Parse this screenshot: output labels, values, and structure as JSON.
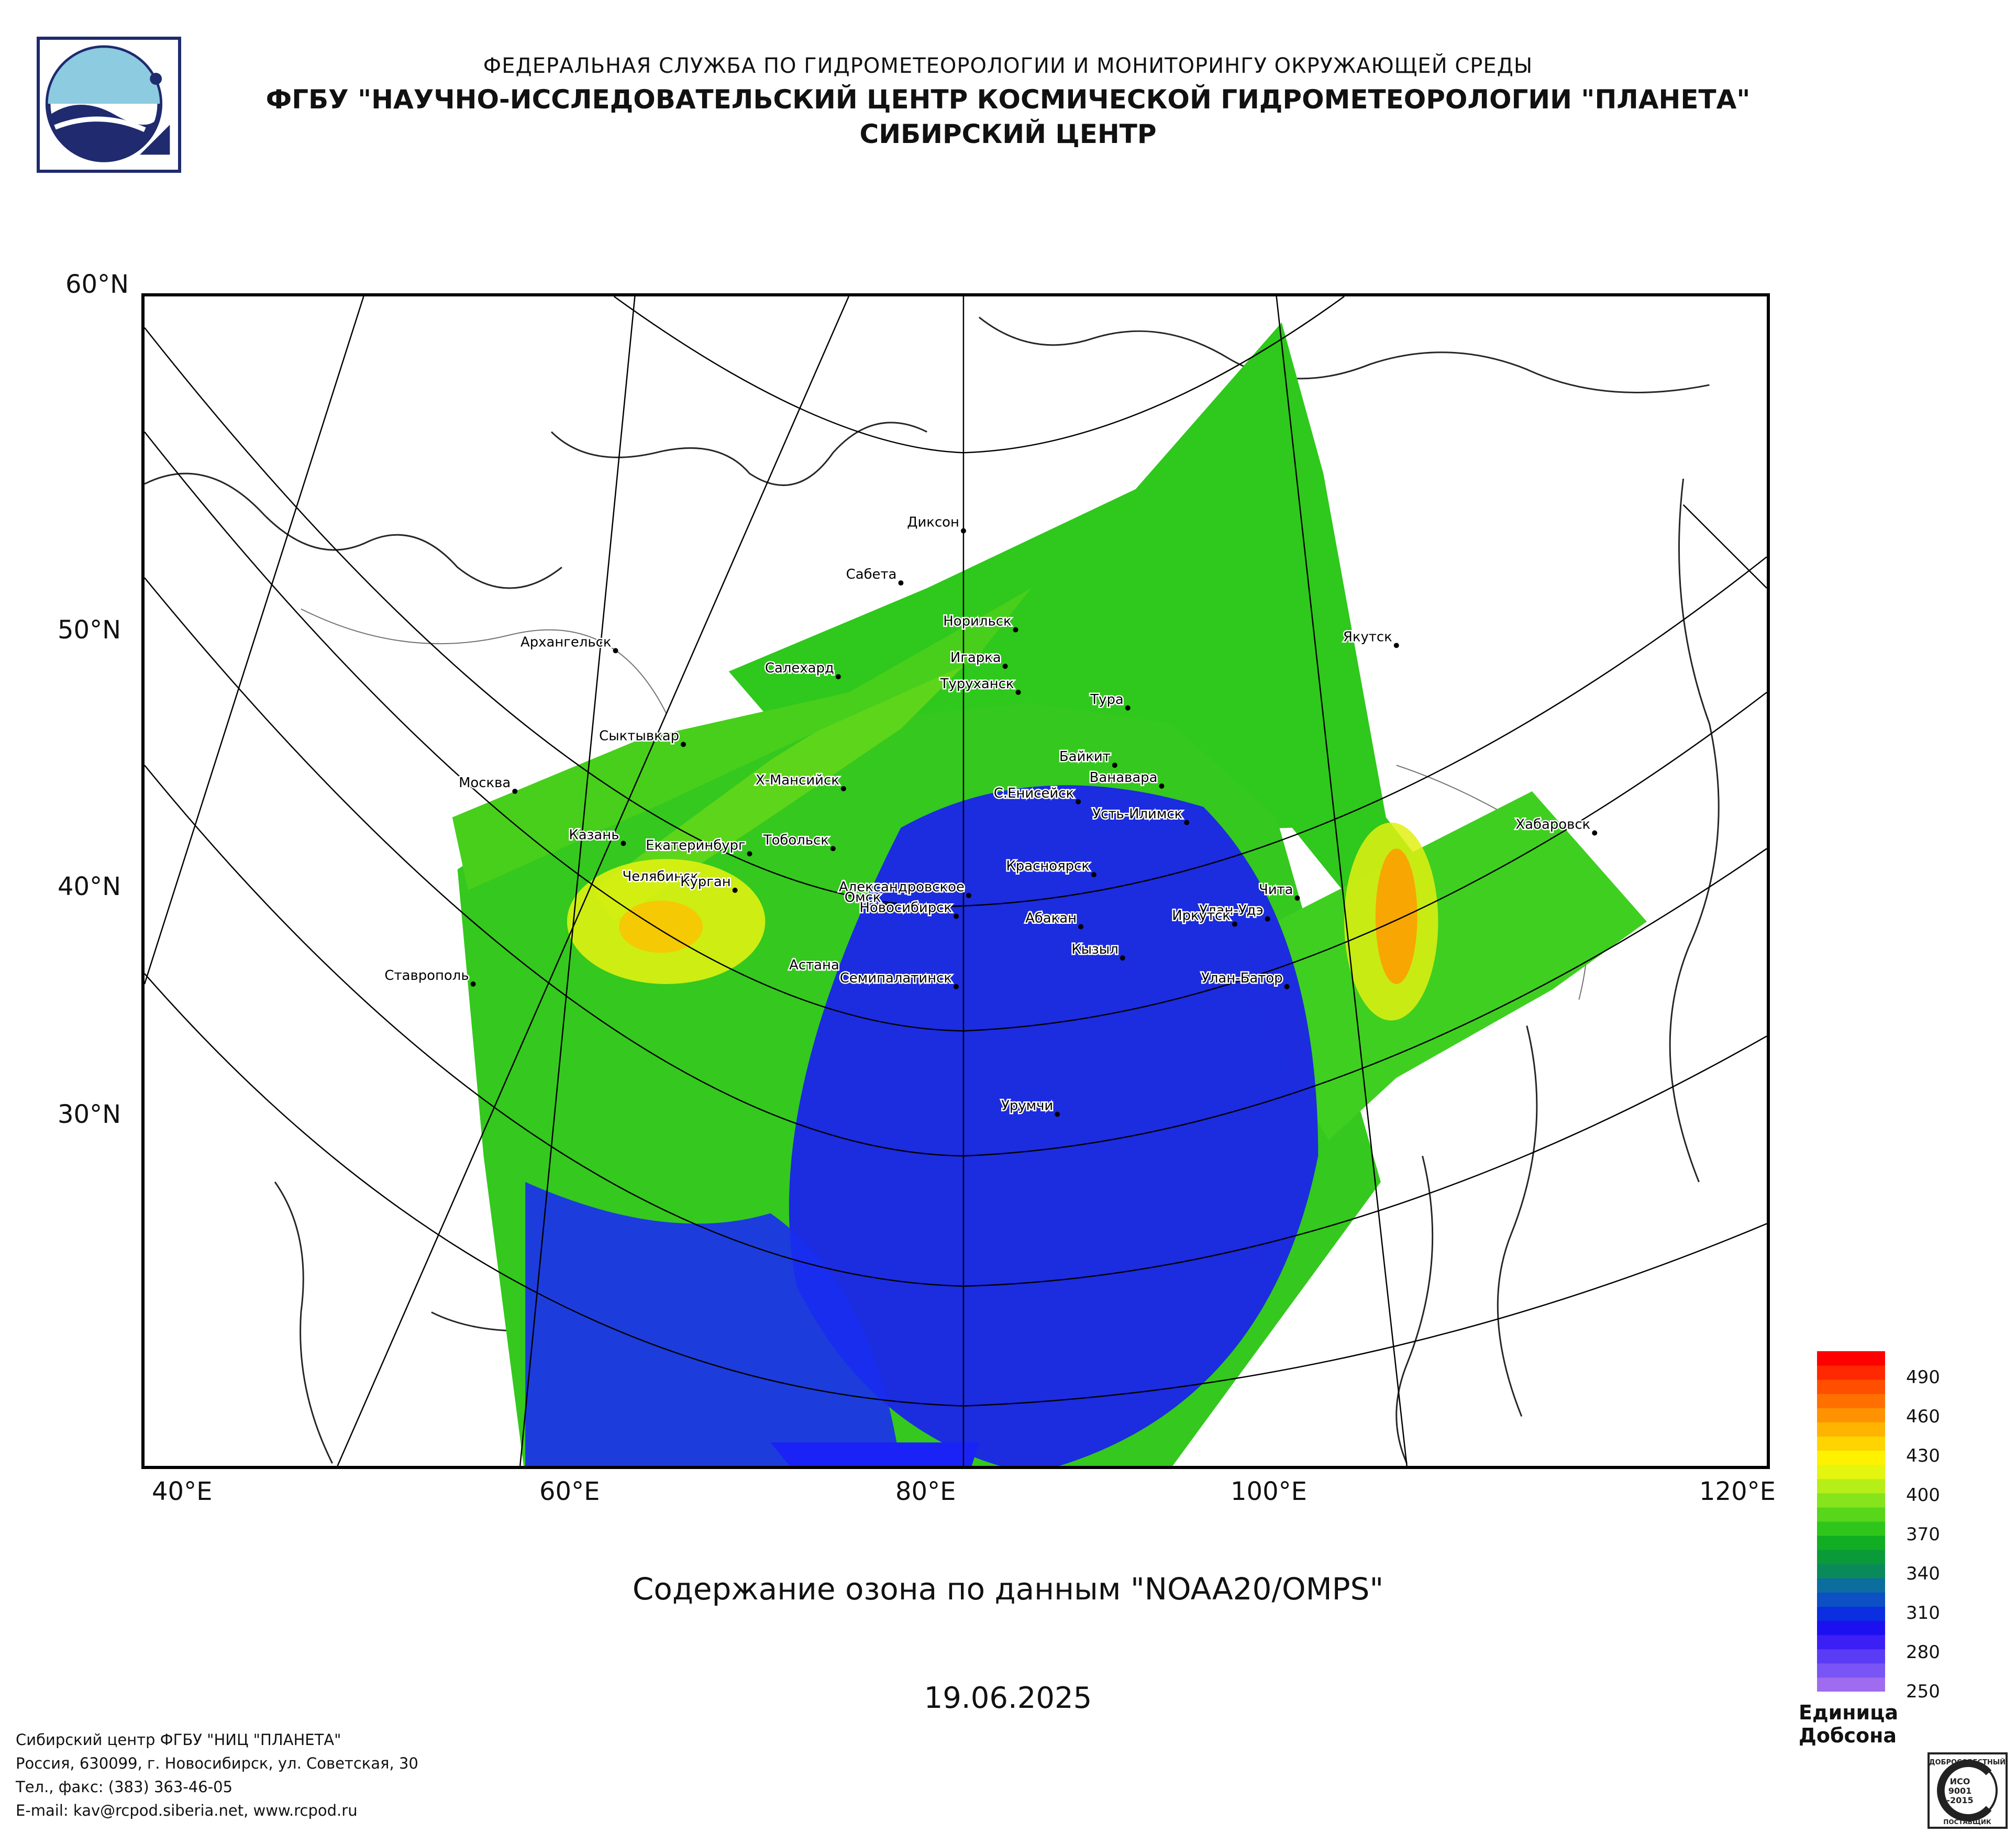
{
  "header": {
    "line1": "ФЕДЕРАЛЬНАЯ СЛУЖБА ПО ГИДРОМЕТЕОРОЛОГИИ И МОНИТОРИНГУ ОКРУЖАЮЩЕЙ СРЕДЫ",
    "line2": "ФГБУ \"НАУЧНО-ИССЛЕДОВАТЕЛЬСКИЙ ЦЕНТР КОСМИЧЕСКОЙ ГИДРОМЕТЕОРОЛОГИИ \"ПЛАНЕТА\"",
    "line3": "СИБИРСКИЙ ЦЕНТР"
  },
  "map": {
    "lat_labels": [
      "60°N",
      "50°N",
      "40°N",
      "30°N"
    ],
    "lon_labels": [
      "40°E",
      "60°E",
      "80°E",
      "100°E",
      "120°E"
    ],
    "cities": [
      "Диксон",
      "Сабета",
      "Норильск",
      "Игарка",
      "Салехард",
      "Архангельск",
      "Туруханск",
      "Якутск",
      "Тура",
      "Сыктывкар",
      "Байкит",
      "Ванавара",
      "Москва",
      "Х-Мансийск",
      "С.Енисейск",
      "Усть-Илимск",
      "Хабаровск",
      "Казань",
      "Тобольск",
      "Екатеринбург",
      "Красноярск",
      "Александровское",
      "Челябинск",
      "Чита",
      "Курган",
      "Омск",
      "Новосибирск",
      "Улан-Удэ",
      "Абакан",
      "Иркутск",
      "Кызыл",
      "Астана",
      "Ставрополь",
      "Семипалатинск",
      "Улан-Батор",
      "Урумчи"
    ]
  },
  "subtitle": "Содержание озона по данным \"NOAA20/OMPS\"",
  "date": "19.06.2025",
  "colorbar": {
    "title": "Единица Добсона",
    "labels": [
      "490",
      "460",
      "430",
      "400",
      "370",
      "340",
      "310",
      "280",
      "250"
    ],
    "min": 250,
    "max": 510,
    "colors": [
      "#9f6cf0",
      "#7a55f5",
      "#5b3cf5",
      "#3c1ff5",
      "#1d10f0",
      "#0b2ee0",
      "#0d4fc4",
      "#0b6e9f",
      "#0a8a5a",
      "#0a9a3a",
      "#11ad22",
      "#2ec61a",
      "#57d61a",
      "#86e41c",
      "#b6ee18",
      "#e4f50f",
      "#fff200",
      "#ffd400",
      "#ffb400",
      "#ff9200",
      "#ff7000",
      "#ff4e00",
      "#ff2800",
      "#ff0000"
    ]
  },
  "footer": {
    "line1": "Сибирский центр ФГБУ \"НИЦ \"ПЛАНЕТА\"",
    "line2": "Россия, 630099, г. Новосибирск, ул. Советская, 30",
    "line3": "Тел., факс: (383) 363-46-05",
    "line4": "E-mail: kav@rcpod.siberia.net, www.rcpod.ru"
  },
  "certificate": {
    "top": "ДОБРОСОВЕСТНЫЙ",
    "code1": "ИСО",
    "code2": "9001",
    "code3": "-2015",
    "bottom": "ПОСТАВЩИК"
  }
}
